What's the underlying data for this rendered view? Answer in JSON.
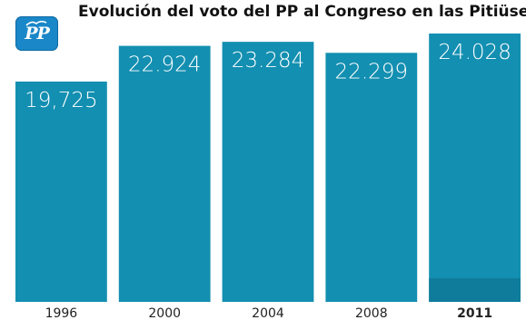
{
  "title": "Evolución del voto del PP al Congreso en las Pitiüses",
  "logo": {
    "text": "PP",
    "icon": "pp-party-logo"
  },
  "colors": {
    "bar": "#138fb1",
    "bar_highlight_base": "#0f7c9b",
    "label": "#ffffff",
    "axis_text": "#222222"
  },
  "chart_data": {
    "type": "bar",
    "title": "Evolución del voto del PP al Congreso en las Pitiüses",
    "categories": [
      "1996",
      "2000",
      "2004",
      "2008",
      "2011"
    ],
    "values": [
      19725,
      22924,
      23284,
      22299,
      24028
    ],
    "value_labels": [
      "19,725",
      "22.924",
      "23.284",
      "22.299",
      "24.028"
    ],
    "highlight_category": "2011",
    "xlabel": "",
    "ylabel": "",
    "ylim": [
      0,
      25000
    ],
    "grid": false,
    "legend": "none"
  }
}
